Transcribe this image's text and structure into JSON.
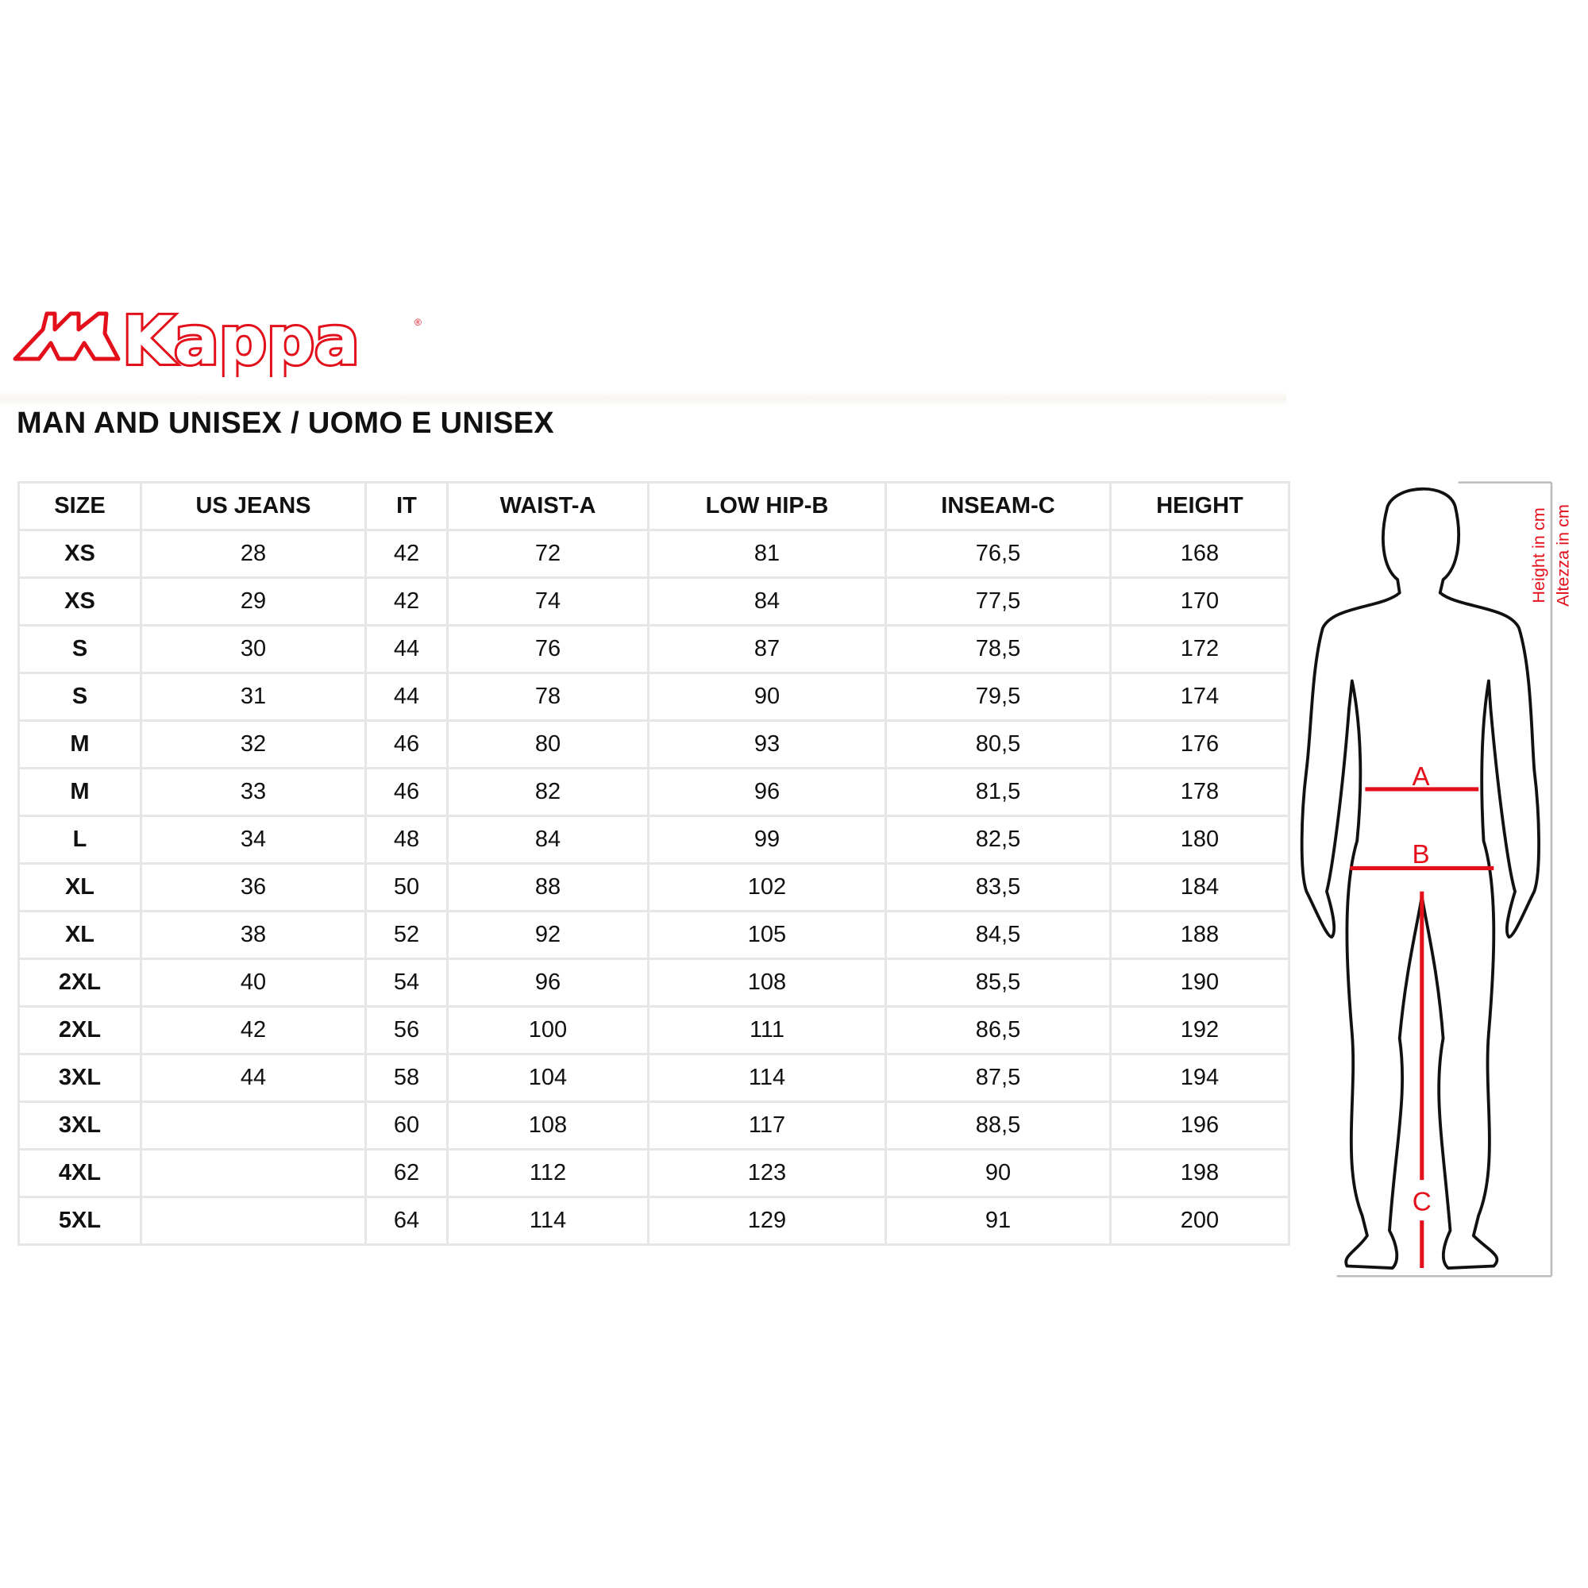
{
  "logo": {
    "text": "Kappa",
    "color": "#e3101c"
  },
  "title": "MAN AND UNISEX / UOMO E UNISEX",
  "table": {
    "headers": [
      "SIZE",
      "US JEANS",
      "IT",
      "WAIST-A",
      "LOW HIP-B",
      "INSEAM-C",
      "HEIGHT"
    ],
    "rows": [
      [
        "XS",
        "28",
        "42",
        "72",
        "81",
        "76,5",
        "168"
      ],
      [
        "XS",
        "29",
        "42",
        "74",
        "84",
        "77,5",
        "170"
      ],
      [
        "S",
        "30",
        "44",
        "76",
        "87",
        "78,5",
        "172"
      ],
      [
        "S",
        "31",
        "44",
        "78",
        "90",
        "79,5",
        "174"
      ],
      [
        "M",
        "32",
        "46",
        "80",
        "93",
        "80,5",
        "176"
      ],
      [
        "M",
        "33",
        "46",
        "82",
        "96",
        "81,5",
        "178"
      ],
      [
        "L",
        "34",
        "48",
        "84",
        "99",
        "82,5",
        "180"
      ],
      [
        "XL",
        "36",
        "50",
        "88",
        "102",
        "83,5",
        "184"
      ],
      [
        "XL",
        "38",
        "52",
        "92",
        "105",
        "84,5",
        "188"
      ],
      [
        "2XL",
        "40",
        "54",
        "96",
        "108",
        "85,5",
        "190"
      ],
      [
        "2XL",
        "42",
        "56",
        "100",
        "111",
        "86,5",
        "192"
      ],
      [
        "3XL",
        "44",
        "58",
        "104",
        "114",
        "87,5",
        "194"
      ],
      [
        "3XL",
        "",
        "60",
        "108",
        "117",
        "88,5",
        "196"
      ],
      [
        "4XL",
        "",
        "62",
        "112",
        "123",
        "90",
        "198"
      ],
      [
        "5XL",
        "",
        "64",
        "114",
        "129",
        "91",
        "200"
      ]
    ]
  },
  "figure": {
    "label_a": "A",
    "label_b": "B",
    "label_c": "C",
    "height_en": "Height in cm",
    "height_it": "Altezza in cm",
    "accent": "#e3101c"
  }
}
